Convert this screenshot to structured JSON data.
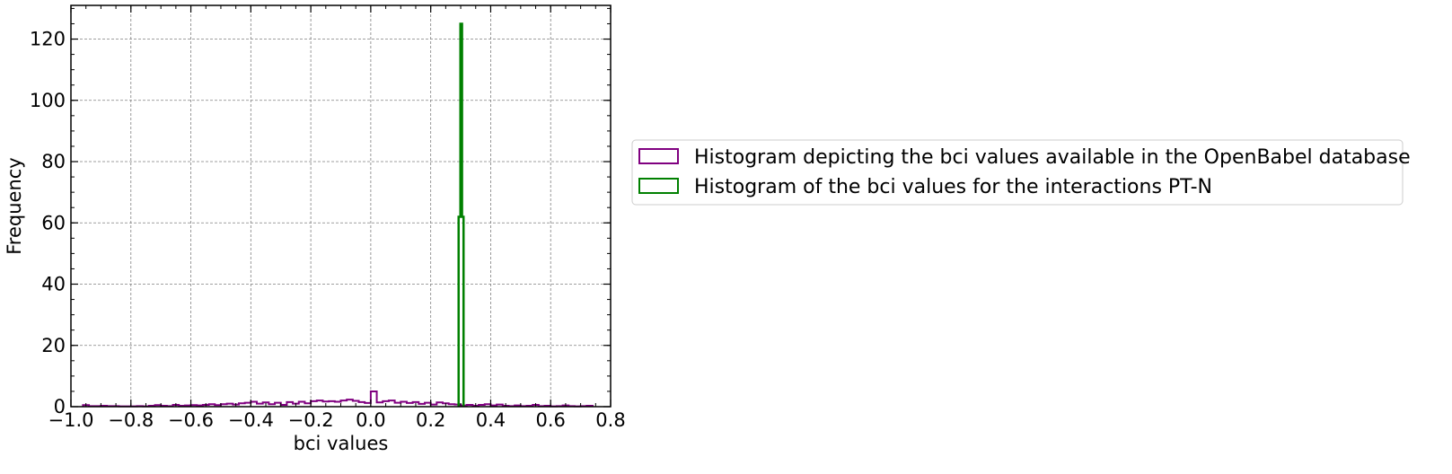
{
  "chart_data": {
    "type": "histogram",
    "xlabel": "bci values",
    "ylabel": "Frequency",
    "xlim": [
      -1.0,
      0.8
    ],
    "ylim": [
      0,
      131
    ],
    "x_ticks": [
      -1.0,
      -0.8,
      -0.6,
      -0.4,
      -0.2,
      0.0,
      0.2,
      0.4,
      0.6,
      0.8
    ],
    "x_tick_labels": [
      "−1.0",
      "−0.8",
      "−0.6",
      "−0.4",
      "−0.2",
      "0.0",
      "0.2",
      "0.4",
      "0.6",
      "0.8"
    ],
    "y_ticks": [
      0,
      20,
      40,
      60,
      80,
      100,
      120
    ],
    "y_tick_labels": [
      "0",
      "20",
      "40",
      "60",
      "80",
      "100",
      "120"
    ],
    "grid": true,
    "legend_position": "outside right, center",
    "series": [
      {
        "name": "Histogram depicting the bci values available in the OpenBabel database",
        "color": "#800080",
        "style": "step",
        "bin_edges": [
          -0.96,
          -0.94,
          -0.92,
          -0.9,
          -0.88,
          -0.86,
          -0.84,
          -0.82,
          -0.8,
          -0.78,
          -0.76,
          -0.74,
          -0.72,
          -0.7,
          -0.68,
          -0.66,
          -0.64,
          -0.62,
          -0.6,
          -0.58,
          -0.56,
          -0.54,
          -0.52,
          -0.5,
          -0.48,
          -0.46,
          -0.44,
          -0.42,
          -0.4,
          -0.38,
          -0.36,
          -0.34,
          -0.32,
          -0.3,
          -0.28,
          -0.26,
          -0.24,
          -0.22,
          -0.2,
          -0.18,
          -0.16,
          -0.14,
          -0.12,
          -0.1,
          -0.08,
          -0.06,
          -0.04,
          -0.02,
          0.0,
          0.02,
          0.04,
          0.06,
          0.08,
          0.1,
          0.12,
          0.14,
          0.16,
          0.18,
          0.2,
          0.22,
          0.24,
          0.26,
          0.28,
          0.3,
          0.32,
          0.34,
          0.36,
          0.38,
          0.4,
          0.42,
          0.44,
          0.46,
          0.48,
          0.5,
          0.52,
          0.54,
          0.56,
          0.58,
          0.6,
          0.62,
          0.64,
          0.66,
          0.68,
          0.7,
          0.72,
          0.74
        ],
        "counts": [
          0.5,
          0.2,
          0.2,
          0.3,
          0.2,
          0.2,
          0.1,
          0.1,
          0.1,
          0.2,
          0.1,
          0.3,
          0.5,
          0.3,
          0.2,
          0.6,
          0.3,
          0.4,
          0.5,
          0.4,
          0.6,
          0.8,
          0.5,
          0.8,
          1.0,
          0.7,
          1.1,
          1.3,
          1.6,
          1.0,
          1.4,
          0.8,
          1.3,
          0.6,
          1.5,
          1.0,
          1.6,
          1.1,
          1.8,
          2.0,
          1.7,
          1.8,
          1.6,
          2.0,
          2.3,
          1.9,
          1.5,
          1.2,
          5.0,
          1.4,
          1.8,
          2.0,
          1.3,
          1.6,
          1.2,
          1.5,
          0.9,
          1.3,
          0.7,
          1.4,
          1.1,
          0.8,
          0.7,
          0.4,
          0.6,
          0.3,
          0.6,
          0.8,
          0.4,
          0.7,
          0.3,
          0.2,
          0.4,
          0.2,
          0.3,
          0.6,
          0.2,
          0.3,
          0.1,
          0.2,
          0.4,
          0.2,
          0.1,
          0.2,
          0.3
        ]
      },
      {
        "name": "Histogram of the bci values for the interactions PT-N",
        "color": "#008000",
        "style": "step",
        "bin_edges": [
          0.293,
          0.299,
          0.3045,
          0.3095
        ],
        "counts": [
          62,
          125,
          62
        ]
      }
    ]
  }
}
